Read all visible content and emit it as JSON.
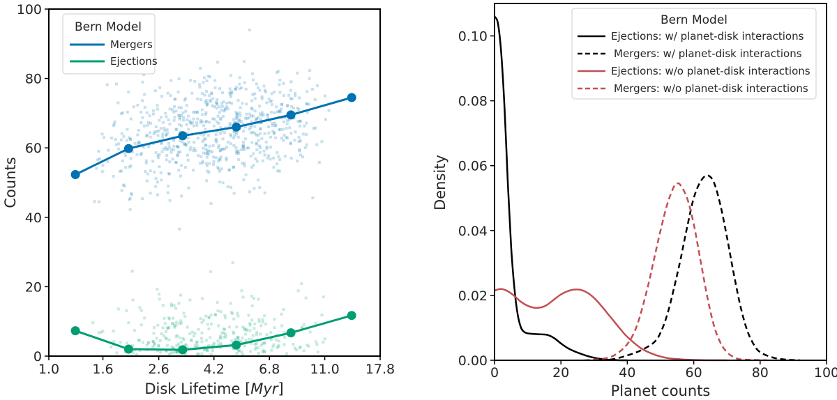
{
  "chart_data": [
    {
      "type": "scatter",
      "title": "",
      "xlabel": "Disk Lifetime [",
      "xlabel_italic": "Myr",
      "xlabel_suffix": "]",
      "ylabel": "Counts",
      "xscale": "log",
      "xlim": [
        1.0,
        17.8
      ],
      "ylim": [
        0,
        100
      ],
      "xticks": [
        "1.0",
        "1.6",
        "2.6",
        "4.2",
        "6.8",
        "11.0",
        "17.8"
      ],
      "xtick_values": [
        1.0,
        1.6,
        2.6,
        4.2,
        6.8,
        11.0,
        17.8
      ],
      "yticks": [
        0,
        20,
        40,
        60,
        80,
        100
      ],
      "legend_title": "Bern Model",
      "legend_position": "top-left",
      "grid": false,
      "series": [
        {
          "name": "Mergers",
          "color": "#0072b2",
          "x": [
            1.26,
            2.0,
            3.2,
            5.1,
            8.2,
            13.9
          ],
          "values": [
            52.3,
            59.8,
            63.5,
            66.0,
            69.5,
            74.5
          ]
        },
        {
          "name": "Ejections",
          "color": "#009e73",
          "x": [
            1.26,
            2.0,
            3.2,
            5.1,
            8.2,
            13.9
          ],
          "values": [
            7.3,
            2.0,
            1.8,
            3.2,
            6.7,
            11.7
          ]
        }
      ],
      "scatter_clouds": [
        {
          "name": "Mergers",
          "color": "#0072b2",
          "x_range": [
            1.1,
            16.5
          ],
          "y_center": 64,
          "y_spread": 8
        },
        {
          "name": "Ejections",
          "color": "#009e73",
          "x_range": [
            1.1,
            16.5
          ],
          "y_center": 8,
          "y_spread": 8
        }
      ]
    },
    {
      "type": "line",
      "title": "",
      "xlabel": "Planet counts",
      "ylabel": "Density",
      "xlim": [
        0,
        100
      ],
      "ylim": [
        0,
        0.11
      ],
      "xticks": [
        0,
        20,
        40,
        60,
        80,
        100
      ],
      "yticks": [
        "0.00",
        "0.02",
        "0.04",
        "0.06",
        "0.08",
        "0.10"
      ],
      "ytick_values": [
        0.0,
        0.02,
        0.04,
        0.06,
        0.08,
        0.1
      ],
      "legend_title": "Bern Model",
      "legend_position": "top-right",
      "grid": false,
      "series": [
        {
          "name": "Ejections: w/ planet-disk interactions",
          "color": "#000000",
          "dash": "solid",
          "x": [
            0,
            1,
            2,
            3,
            4,
            5,
            6,
            7,
            8,
            9,
            10,
            12,
            14,
            16,
            18,
            20,
            22,
            24,
            26,
            28,
            30,
            32,
            34,
            36,
            38,
            40
          ],
          "values": [
            0.106,
            0.104,
            0.095,
            0.078,
            0.055,
            0.035,
            0.022,
            0.014,
            0.01,
            0.0087,
            0.0083,
            0.0081,
            0.008,
            0.0078,
            0.0068,
            0.0052,
            0.0038,
            0.0028,
            0.002,
            0.0013,
            0.0008,
            0.0004,
            0.0002,
            0.0001,
            0.0,
            0.0
          ]
        },
        {
          "name": "Mergers: w/ planet-disk interactions",
          "color": "#000000",
          "dash": "dashed",
          "x": [
            32,
            36,
            40,
            44,
            48,
            50,
            52,
            54,
            56,
            58,
            60,
            62,
            64,
            66,
            68,
            70,
            72,
            74,
            76,
            78,
            80,
            84,
            88,
            92
          ],
          "values": [
            0.0,
            0.0004,
            0.0015,
            0.003,
            0.0055,
            0.0085,
            0.014,
            0.022,
            0.031,
            0.041,
            0.05,
            0.055,
            0.057,
            0.055,
            0.048,
            0.038,
            0.027,
            0.017,
            0.0095,
            0.005,
            0.0025,
            0.0008,
            0.0002,
            0.0
          ]
        },
        {
          "name": "Ejections: w/o planet-disk interactions",
          "color": "#c44e52",
          "dash": "solid",
          "x": [
            0,
            2,
            4,
            6,
            8,
            10,
            12,
            14,
            16,
            18,
            20,
            22,
            24,
            26,
            28,
            30,
            32,
            34,
            36,
            38,
            40,
            44,
            48,
            52,
            56,
            60,
            64,
            70
          ],
          "values": [
            0.0215,
            0.022,
            0.0213,
            0.0198,
            0.018,
            0.0168,
            0.0162,
            0.0163,
            0.0172,
            0.0188,
            0.0203,
            0.0213,
            0.0218,
            0.0217,
            0.0208,
            0.0192,
            0.017,
            0.0145,
            0.012,
            0.0095,
            0.0072,
            0.0038,
            0.0018,
            0.0007,
            0.0003,
            0.0001,
            0.0,
            0.0
          ]
        },
        {
          "name": "Mergers: w/o planet-disk interactions",
          "color": "#c44e52",
          "dash": "dashed",
          "x": [
            27,
            32,
            36,
            40,
            43,
            46,
            48,
            50,
            52,
            54,
            55,
            56,
            58,
            60,
            62,
            64,
            66,
            68,
            70,
            72,
            74,
            78,
            82
          ],
          "values": [
            0.0,
            0.0004,
            0.0015,
            0.005,
            0.011,
            0.022,
            0.031,
            0.04,
            0.048,
            0.0535,
            0.0545,
            0.054,
            0.05,
            0.042,
            0.031,
            0.02,
            0.011,
            0.0055,
            0.0025,
            0.001,
            0.0003,
            0.0001,
            0.0
          ]
        }
      ]
    }
  ]
}
